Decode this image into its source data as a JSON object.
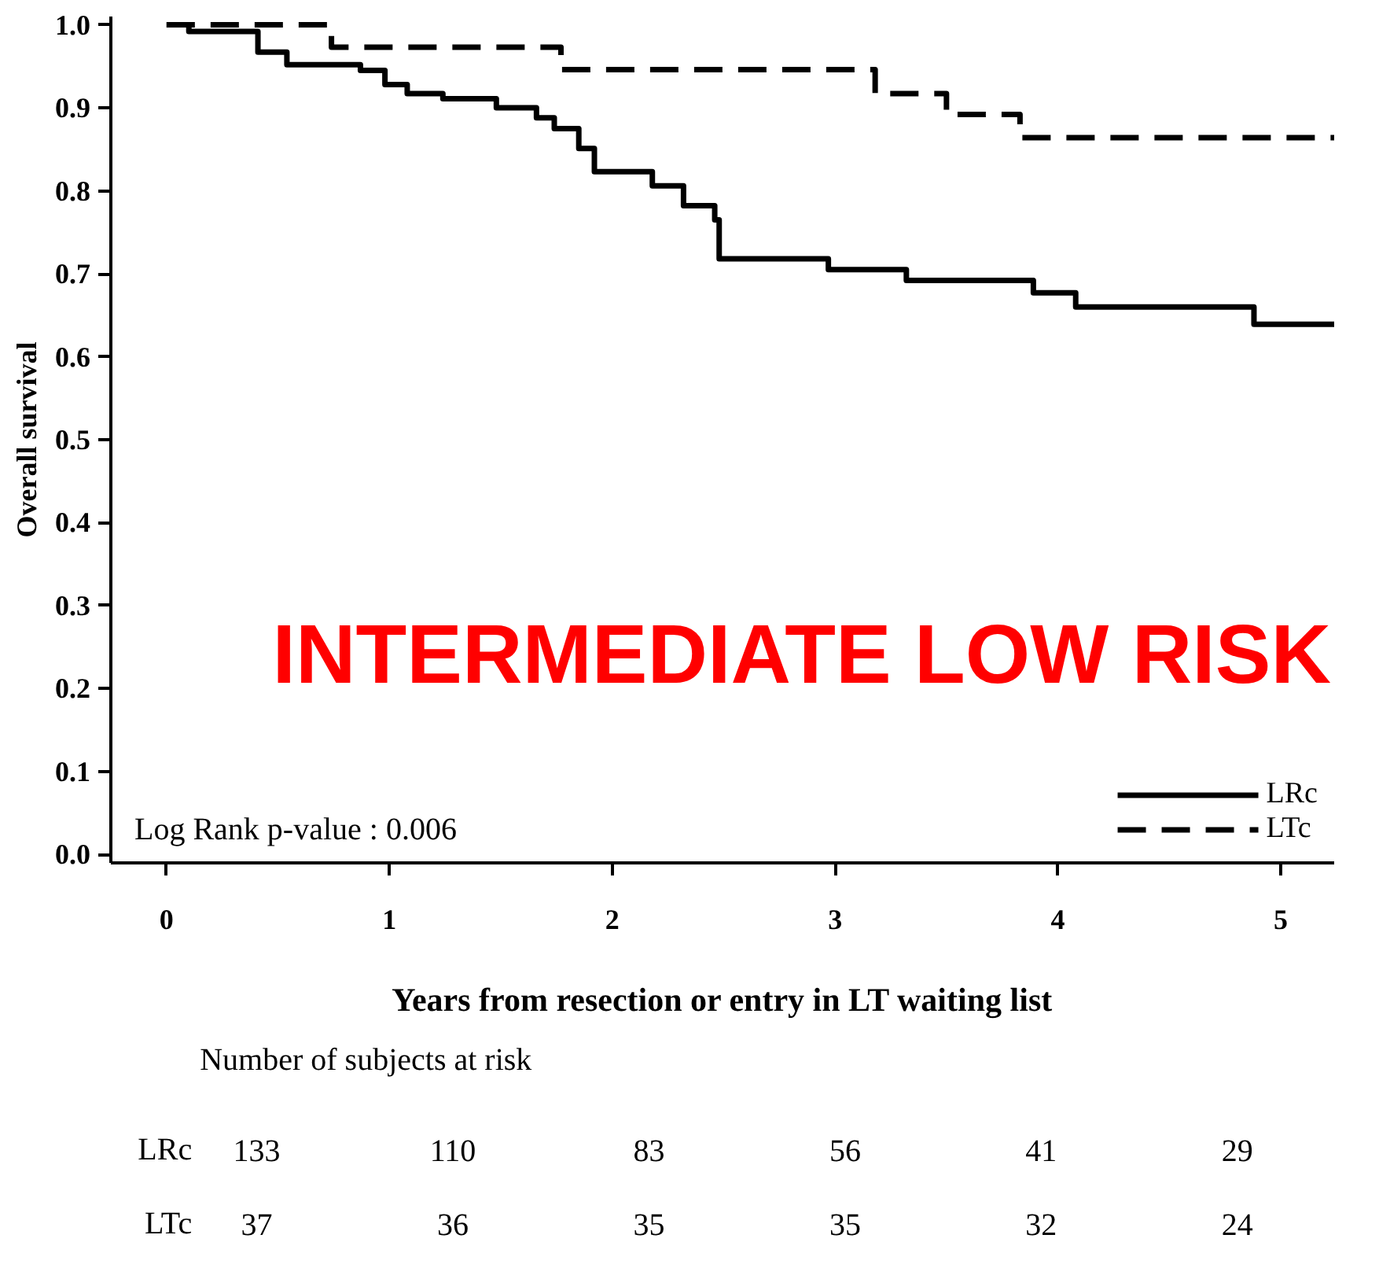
{
  "chart_data": {
    "type": "step",
    "ylabel": "Overall survival",
    "xlabel": "Years from resection or entry in LT waiting list",
    "xlim": [
      -0.25,
      5.24
    ],
    "ylim": [
      -0.01,
      1.01
    ],
    "xticks": [
      0,
      1,
      2,
      3,
      4,
      5
    ],
    "yticks": [
      {
        "value": 0,
        "label": "0.0"
      },
      0.1,
      0.2,
      0.3,
      0.4,
      0.5,
      0.6,
      0.7,
      0.8,
      0.9,
      {
        "value": 1,
        "label": "1.0"
      }
    ],
    "grid": false,
    "legend": "bottom right",
    "series": [
      {
        "name": "LRc",
        "color": "#000000",
        "line_style": "solid",
        "x": [
          0,
          0.1,
          0.41,
          0.54,
          0.87,
          0.98,
          1.08,
          1.24,
          1.48,
          1.66,
          1.74,
          1.85,
          1.92,
          2.18,
          2.32,
          2.46,
          2.48,
          2.97,
          3.32,
          3.89,
          4.08,
          4.88,
          5.24
        ],
        "values": [
          1.0,
          0.992,
          0.967,
          0.952,
          0.945,
          0.928,
          0.917,
          0.911,
          0.9,
          0.888,
          0.875,
          0.851,
          0.823,
          0.806,
          0.782,
          0.765,
          0.718,
          0.705,
          0.692,
          0.677,
          0.66,
          0.639,
          0.639
        ]
      },
      {
        "name": "LTc",
        "color": "#000000",
        "line_style": "dashed",
        "x": [
          0,
          0.74,
          1.77,
          3.18,
          3.5,
          3.83,
          5.24
        ],
        "values": [
          1.0,
          0.973,
          0.946,
          0.917,
          0.892,
          0.864,
          0.864
        ]
      }
    ],
    "annotations": [
      "Log Rank p-value :  0.006",
      "INTERMEDIATE LOW RISK",
      "Number of subjects at risk",
      "133",
      "110",
      "83",
      "56",
      "41",
      "29",
      "37",
      "36",
      "35",
      "35",
      "32",
      "24"
    ]
  }
}
